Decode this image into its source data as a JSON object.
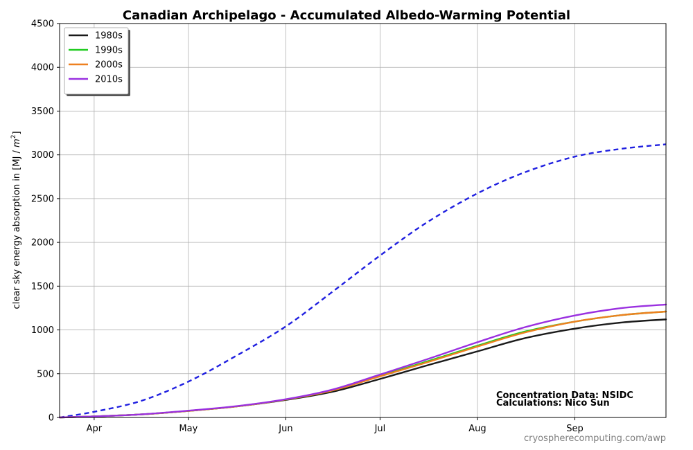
{
  "chart_data": {
    "type": "line",
    "title": "Canadian Archipelago - Accumulated Albedo-Warming Potential",
    "ylabel": "clear sky energy absorption in  [MJ / m²]",
    "ylabel_prefix": "clear sky energy absorption in  [MJ / ",
    "ylabel_unit_base": "m",
    "ylabel_unit_exp": "2",
    "ylabel_suffix": "]",
    "ylim": [
      0,
      4500
    ],
    "yticks": [
      0,
      500,
      1000,
      1500,
      2000,
      2500,
      3000,
      3500,
      4000,
      4500
    ],
    "xlim": [
      "Mar 21",
      "Sep 30"
    ],
    "xticks": [
      {
        "label": "Apr",
        "date": "Apr 1"
      },
      {
        "label": "May",
        "date": "May 1"
      },
      {
        "label": "Jun",
        "date": "Jun 1"
      },
      {
        "label": "Jul",
        "date": "Jul 1"
      },
      {
        "label": "Aug",
        "date": "Aug 1"
      },
      {
        "label": "Sep",
        "date": "Sep 1"
      }
    ],
    "grid": true,
    "legend_position": "top-left",
    "x": [
      "Mar 21",
      "Apr 1",
      "Apr 16",
      "May 1",
      "May 16",
      "Jun 1",
      "Jun 16",
      "Jul 1",
      "Jul 16",
      "Aug 1",
      "Aug 16",
      "Sep 1",
      "Sep 16",
      "Sep 30"
    ],
    "series": [
      {
        "name": "",
        "color": "#2020e0",
        "dashed": true,
        "values": [
          0,
          65,
          190,
          410,
          700,
          1040,
          1440,
          1850,
          2230,
          2560,
          2800,
          2980,
          3070,
          3120
        ]
      },
      {
        "name": "1980s",
        "color": "#1a1a1a",
        "dashed": false,
        "values": [
          0,
          12,
          35,
          75,
          125,
          200,
          295,
          440,
          595,
          755,
          905,
          1015,
          1085,
          1120
        ]
      },
      {
        "name": "1990s",
        "color": "#22cc22",
        "dashed": false,
        "values": [
          0,
          12,
          35,
          75,
          125,
          205,
          310,
          475,
          640,
          820,
          980,
          1095,
          1170,
          1210
        ]
      },
      {
        "name": "2000s",
        "color": "#ee8020",
        "dashed": false,
        "values": [
          0,
          12,
          35,
          75,
          125,
          205,
          310,
          470,
          630,
          810,
          970,
          1095,
          1170,
          1210
        ]
      },
      {
        "name": "2010s",
        "color": "#9a30e0",
        "dashed": false,
        "values": [
          0,
          12,
          35,
          78,
          128,
          208,
          320,
          490,
          665,
          860,
          1030,
          1165,
          1250,
          1290
        ]
      }
    ],
    "annotations": [
      "Concentration Data: NSIDC",
      "Calculations: Nico Sun"
    ],
    "footer": "cryospherecomputing.com/awp"
  }
}
